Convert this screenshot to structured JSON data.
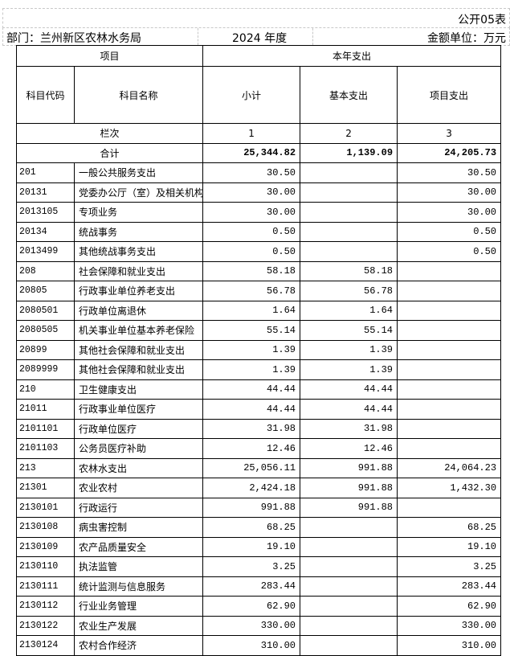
{
  "header": {
    "table_no": "公开05表",
    "department": "部门：兰州新区农林水务局",
    "year": "2024 年度",
    "unit": "金额单位：万元"
  },
  "columns": {
    "item": "项目",
    "current_year": "本年支出",
    "code": "科目代码",
    "name": "科目名称",
    "subtotal": "小计",
    "basic": "基本支出",
    "project": "项目支出",
    "col_index_label": "栏次",
    "col_index": [
      "1",
      "2",
      "3"
    ]
  },
  "total": {
    "label": "合计",
    "subtotal": "25,344.82",
    "basic": "1,139.09",
    "project": "24,205.73"
  },
  "rows": [
    {
      "code": "201",
      "name": "一般公共服务支出",
      "subtotal": "30.50",
      "basic": "",
      "project": "30.50"
    },
    {
      "code": "20131",
      "name": "党委办公厅（室）及相关机构",
      "subtotal": "30.00",
      "basic": "",
      "project": "30.00"
    },
    {
      "code": "2013105",
      "name": "专项业务",
      "subtotal": "30.00",
      "basic": "",
      "project": "30.00"
    },
    {
      "code": "20134",
      "name": "统战事务",
      "subtotal": "0.50",
      "basic": "",
      "project": "0.50"
    },
    {
      "code": "2013499",
      "name": "其他统战事务支出",
      "subtotal": "0.50",
      "basic": "",
      "project": "0.50"
    },
    {
      "code": "208",
      "name": "社会保障和就业支出",
      "subtotal": "58.18",
      "basic": "58.18",
      "project": ""
    },
    {
      "code": "20805",
      "name": "行政事业单位养老支出",
      "subtotal": "56.78",
      "basic": "56.78",
      "project": ""
    },
    {
      "code": "2080501",
      "name": "行政单位离退休",
      "subtotal": "1.64",
      "basic": "1.64",
      "project": ""
    },
    {
      "code": "2080505",
      "name": "机关事业单位基本养老保险",
      "subtotal": "55.14",
      "basic": "55.14",
      "project": ""
    },
    {
      "code": "20899",
      "name": "其他社会保障和就业支出",
      "subtotal": "1.39",
      "basic": "1.39",
      "project": ""
    },
    {
      "code": "2089999",
      "name": "其他社会保障和就业支出",
      "subtotal": "1.39",
      "basic": "1.39",
      "project": ""
    },
    {
      "code": "210",
      "name": "卫生健康支出",
      "subtotal": "44.44",
      "basic": "44.44",
      "project": ""
    },
    {
      "code": "21011",
      "name": "行政事业单位医疗",
      "subtotal": "44.44",
      "basic": "44.44",
      "project": ""
    },
    {
      "code": "2101101",
      "name": "行政单位医疗",
      "subtotal": "31.98",
      "basic": "31.98",
      "project": ""
    },
    {
      "code": "2101103",
      "name": "公务员医疗补助",
      "subtotal": "12.46",
      "basic": "12.46",
      "project": ""
    },
    {
      "code": "213",
      "name": "农林水支出",
      "subtotal": "25,056.11",
      "basic": "991.88",
      "project": "24,064.23"
    },
    {
      "code": "21301",
      "name": "农业农村",
      "subtotal": "2,424.18",
      "basic": "991.88",
      "project": "1,432.30"
    },
    {
      "code": "2130101",
      "name": "行政运行",
      "subtotal": "991.88",
      "basic": "991.88",
      "project": ""
    },
    {
      "code": "2130108",
      "name": "病虫害控制",
      "subtotal": "68.25",
      "basic": "",
      "project": "68.25"
    },
    {
      "code": "2130109",
      "name": "农产品质量安全",
      "subtotal": "19.10",
      "basic": "",
      "project": "19.10"
    },
    {
      "code": "2130110",
      "name": "执法监管",
      "subtotal": "3.25",
      "basic": "",
      "project": "3.25"
    },
    {
      "code": "2130111",
      "name": "统计监测与信息服务",
      "subtotal": "283.44",
      "basic": "",
      "project": "283.44"
    },
    {
      "code": "2130112",
      "name": "行业业务管理",
      "subtotal": "62.90",
      "basic": "",
      "project": "62.90"
    },
    {
      "code": "2130122",
      "name": "农业生产发展",
      "subtotal": "330.00",
      "basic": "",
      "project": "330.00"
    },
    {
      "code": "2130124",
      "name": "农村合作经济",
      "subtotal": "310.00",
      "basic": "",
      "project": "310.00"
    }
  ]
}
